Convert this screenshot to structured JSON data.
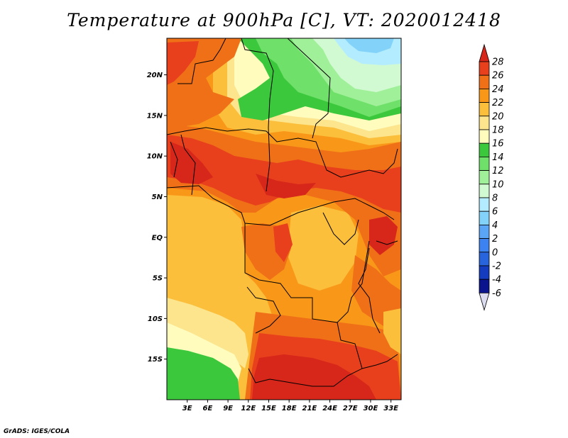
{
  "title": "Temperature at 900hPa [C], VT: 2020012418",
  "credit": "GrADS: IGES/COLA",
  "map": {
    "x_range": [
      0,
      34.5
    ],
    "y_range": [
      -20,
      24.5
    ],
    "lat_ticks": [
      {
        "value": 20,
        "label": "20N"
      },
      {
        "value": 15,
        "label": "15N"
      },
      {
        "value": 10,
        "label": "10N"
      },
      {
        "value": 5,
        "label": "5N"
      },
      {
        "value": 0,
        "label": "EQ"
      },
      {
        "value": -5,
        "label": "5S"
      },
      {
        "value": -10,
        "label": "10S"
      },
      {
        "value": -15,
        "label": "15S"
      }
    ],
    "lon_ticks": [
      {
        "value": 3,
        "label": "3E"
      },
      {
        "value": 6,
        "label": "6E"
      },
      {
        "value": 9,
        "label": "9E"
      },
      {
        "value": 12,
        "label": "12E"
      },
      {
        "value": 15,
        "label": "15E"
      },
      {
        "value": 18,
        "label": "18E"
      },
      {
        "value": 21,
        "label": "21E"
      },
      {
        "value": 24,
        "label": "24E"
      },
      {
        "value": 27,
        "label": "27E"
      },
      {
        "value": 30,
        "label": "30E"
      },
      {
        "value": 33,
        "label": "33E"
      }
    ]
  },
  "colorbar": {
    "labels": [
      "28",
      "26",
      "24",
      "22",
      "20",
      "18",
      "16",
      "14",
      "12",
      "10",
      "8",
      "6",
      "4",
      "2",
      "0",
      "-2",
      "-4",
      "-6"
    ],
    "colors": [
      "#d7261a",
      "#e8401c",
      "#f07018",
      "#f99818",
      "#fbbf3c",
      "#fde58e",
      "#fffcbe",
      "#3cc83c",
      "#6fe06a",
      "#a0f09a",
      "#d2fad2",
      "#b4ecff",
      "#82d2fa",
      "#5aa5f5",
      "#3c82f0",
      "#2864dc",
      "#143cbe",
      "#0a148c",
      "#dcdcf0"
    ]
  },
  "fields": {
    "colors": {
      "t14": "#3cc83c",
      "t12": "#6fe06a",
      "t10": "#a0f09a",
      "t8": "#d2fad2",
      "t6": "#b4ecff",
      "t4": "#82d2fa",
      "t16": "#fffcbe",
      "t18": "#fde58e",
      "t20": "#fbbf3c",
      "t22": "#f99818",
      "t24": "#f07018",
      "t26": "#e8401c",
      "t28": "#d7261a"
    }
  }
}
